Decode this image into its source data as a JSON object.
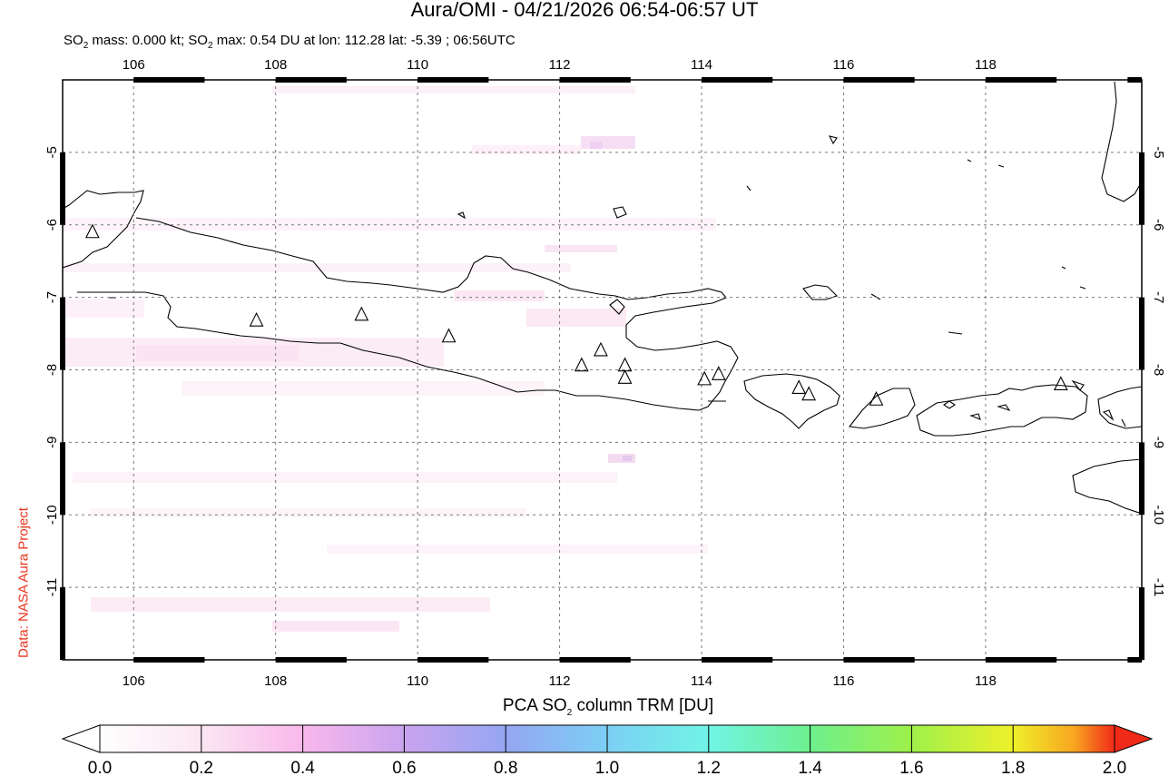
{
  "header": {
    "title": "Aura/OMI - 04/21/2026 06:54-06:57 UT",
    "subtitle_pre": "SO",
    "subtitle_sub1": "2",
    "subtitle_mid": " mass: 0.000 kt; SO",
    "subtitle_sub2": "2",
    "subtitle_post": " max: 0.54 DU at lon: 112.28 lat: -5.39 ; 06:56UTC"
  },
  "credit": "Data: NASA Aura Project",
  "map": {
    "lon_range": [
      105,
      120.2
    ],
    "lat_range": [
      -12,
      -4
    ],
    "lon_ticks": [
      "106",
      "108",
      "110",
      "112",
      "114",
      "116",
      "118"
    ],
    "lat_ticks": [
      "-5",
      "-6",
      "-7",
      "-8",
      "-9",
      "-10",
      "-11"
    ],
    "grid": "dotted",
    "coast_color": "#000000",
    "volcano_marker": "triangle-outline",
    "volcanoes": [
      {
        "lon": 105.42,
        "lat": -6.1
      },
      {
        "lon": 107.73,
        "lat": -7.32
      },
      {
        "lon": 109.21,
        "lat": -7.24
      },
      {
        "lon": 110.44,
        "lat": -7.54
      },
      {
        "lon": 112.31,
        "lat": -7.94
      },
      {
        "lon": 112.58,
        "lat": -7.73
      },
      {
        "lon": 112.92,
        "lat": -7.94
      },
      {
        "lon": 112.92,
        "lat": -8.11
      },
      {
        "lon": 114.04,
        "lat": -8.13
      },
      {
        "lon": 114.24,
        "lat": -8.06
      },
      {
        "lon": 115.37,
        "lat": -8.25
      },
      {
        "lon": 115.51,
        "lat": -8.34
      },
      {
        "lon": 116.46,
        "lat": -8.41
      },
      {
        "lon": 119.06,
        "lat": -8.2
      }
    ]
  },
  "colorbar": {
    "title_pre": "PCA SO",
    "title_sub": "2",
    "title_post": " column TRM [DU]",
    "ticks": [
      "0.0",
      "0.2",
      "0.4",
      "0.6",
      "0.8",
      "1.0",
      "1.2",
      "1.4",
      "1.6",
      "1.8",
      "2.0"
    ],
    "range": [
      0,
      2
    ],
    "colors": [
      "#ffffff",
      "#fbe6f2",
      "#f9b8ec",
      "#c9a4ef",
      "#95a6f2",
      "#7ccff4",
      "#70f4e6",
      "#6ef08e",
      "#9ef04a",
      "#eef02a",
      "#f8a620",
      "#f02a18"
    ]
  }
}
